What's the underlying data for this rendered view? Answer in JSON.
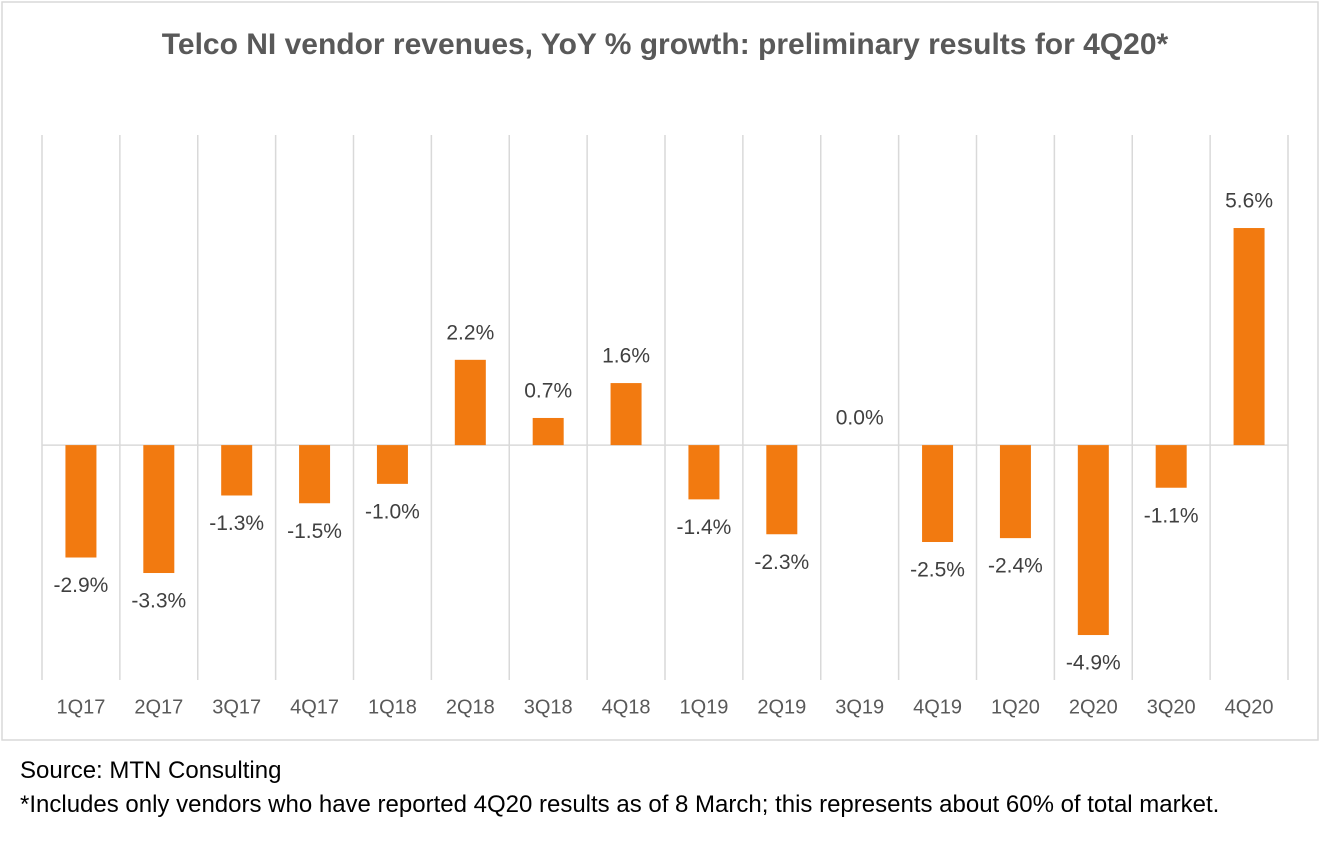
{
  "chart_data": {
    "type": "bar",
    "title": "Telco NI vendor revenues, YoY % growth: preliminary results for 4Q20*",
    "categories": [
      "1Q17",
      "2Q17",
      "3Q17",
      "4Q17",
      "1Q18",
      "2Q18",
      "3Q18",
      "4Q18",
      "1Q19",
      "2Q19",
      "3Q19",
      "4Q19",
      "1Q20",
      "2Q20",
      "3Q20",
      "4Q20"
    ],
    "values": [
      -2.9,
      -3.3,
      -1.3,
      -1.5,
      -1.0,
      2.2,
      0.7,
      1.6,
      -1.4,
      -2.3,
      0.0,
      -2.5,
      -2.4,
      -4.9,
      -1.1,
      5.6
    ],
    "value_labels": [
      "-2.9%",
      "-3.3%",
      "-1.3%",
      "-1.5%",
      "-1.0%",
      "2.2%",
      "0.7%",
      "1.6%",
      "-1.4%",
      "-2.3%",
      "0.0%",
      "-2.5%",
      "-2.4%",
      "-4.9%",
      "-1.1%",
      "5.6%"
    ],
    "color": "#f27a10",
    "ylim": [
      -6.06,
      8.0
    ],
    "grid": true
  },
  "footnotes": [
    "Source: MTN Consulting",
    "*Includes only vendors who have reported 4Q20 results as of 8 March; this represents about 60% of total market."
  ]
}
